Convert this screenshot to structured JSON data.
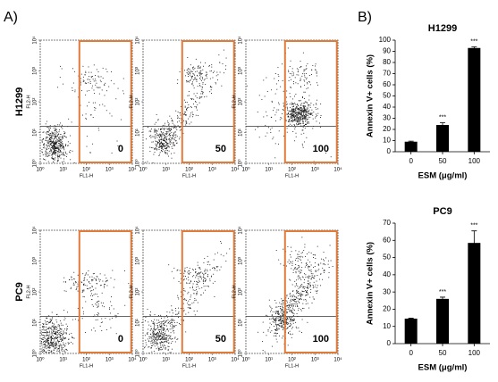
{
  "panel_a": {
    "label": "A)",
    "xlabel": "FL1-H",
    "ylabel": "FL2-H",
    "ticks": [
      {
        "value": 0,
        "label": "10⁰"
      },
      {
        "value": 1,
        "label": "10¹"
      },
      {
        "value": 2,
        "label": "10²"
      },
      {
        "value": 3,
        "label": "10³"
      },
      {
        "value": 4,
        "label": "10⁴"
      }
    ],
    "rows": [
      {
        "name": "H1299",
        "doses": [
          "0",
          "50",
          "100"
        ]
      },
      {
        "name": "PC9",
        "doses": [
          "0",
          "50",
          "100"
        ]
      }
    ]
  },
  "panel_b_label": "B)",
  "chart_data": [
    {
      "type": "bar",
      "title": "H1299",
      "categories": [
        "0",
        "50",
        "100"
      ],
      "values": [
        9,
        24,
        93
      ],
      "errors": [
        0.5,
        2,
        1
      ],
      "significance": [
        null,
        "***",
        "***"
      ],
      "color": "#000000",
      "xlabel": "ESM (μg/ml)",
      "ylabel": "Annexin V+ cells (%)",
      "ylim": [
        0,
        100
      ],
      "yticks": [
        0,
        10,
        20,
        30,
        40,
        50,
        60,
        70,
        80,
        90,
        100
      ]
    },
    {
      "type": "bar",
      "title": "PC9",
      "categories": [
        "0",
        "50",
        "100"
      ],
      "values": [
        14.5,
        26,
        58.5
      ],
      "errors": [
        0.3,
        1,
        7
      ],
      "significance": [
        null,
        "***",
        "***"
      ],
      "color": "#000000",
      "xlabel": "ESM (μg/ml)",
      "ylabel": "Annexin V+ cells (%)",
      "ylim": [
        0,
        70
      ],
      "yticks": [
        0,
        10,
        20,
        30,
        40,
        50,
        60,
        70
      ]
    }
  ]
}
